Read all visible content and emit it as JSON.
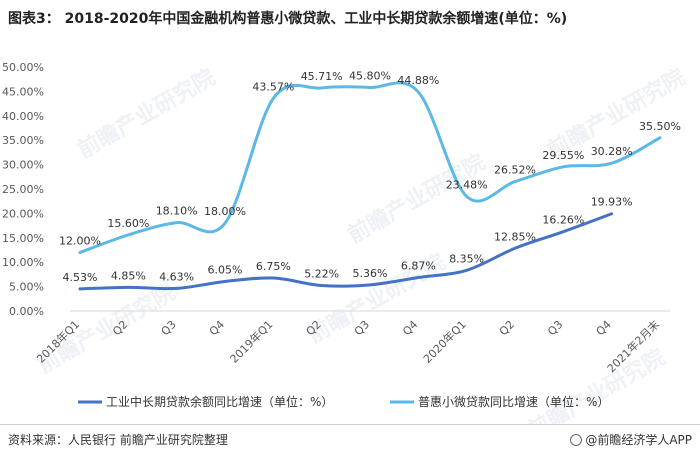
{
  "title": "图表3： 2018-2020年中国金融机构普惠小微贷款、工业中长期贷款余额增速(单位：%)",
  "footer": {
    "source": "资料来源：人民银行 前瞻产业研究院整理",
    "brand": "@前瞻经济学人APP"
  },
  "watermark": "前瞻产业研究院",
  "colors": {
    "series1": "#4472C4",
    "series2": "#5BB8E8",
    "grid": "#d9d9d9",
    "axis_text": "#595959"
  },
  "chart_data": {
    "type": "line",
    "categories": [
      "2018年Q1",
      "Q2",
      "Q3",
      "Q4",
      "2019年Q1",
      "Q2",
      "Q3",
      "Q4",
      "2020年Q1",
      "Q2",
      "Q3",
      "Q4",
      "2021年2月末"
    ],
    "ylim": [
      0,
      50
    ],
    "yticks": [
      "0.00%",
      "5.00%",
      "10.00%",
      "15.00%",
      "20.00%",
      "25.00%",
      "30.00%",
      "35.00%",
      "40.00%",
      "45.00%",
      "50.00%"
    ],
    "grid": false,
    "legend_position": "bottom",
    "series": [
      {
        "name": "工业中长期贷款余额同比增速（单位：%）",
        "values": [
          4.53,
          4.85,
          4.63,
          6.05,
          6.75,
          5.22,
          5.36,
          6.87,
          8.35,
          12.85,
          16.26,
          19.93,
          null
        ],
        "labels": [
          "4.53%",
          "4.85%",
          "4.63%",
          "6.05%",
          "6.75%",
          "5.22%",
          "5.36%",
          "6.87%",
          "8.35%",
          "12.85%",
          "16.26%",
          "19.93%",
          ""
        ]
      },
      {
        "name": "普惠小微贷款同比增速（单位：%）",
        "values": [
          12.0,
          15.6,
          18.1,
          18.0,
          43.57,
          45.71,
          45.8,
          44.88,
          23.48,
          26.52,
          29.55,
          30.28,
          35.5
        ],
        "labels": [
          "12.00%",
          "15.60%",
          "18.10%",
          "18.00%",
          "43.57%",
          "45.71%",
          "45.80%",
          "44.88%",
          "23.48%",
          "26.52%",
          "29.55%",
          "30.28%",
          "35.50%"
        ]
      }
    ]
  }
}
